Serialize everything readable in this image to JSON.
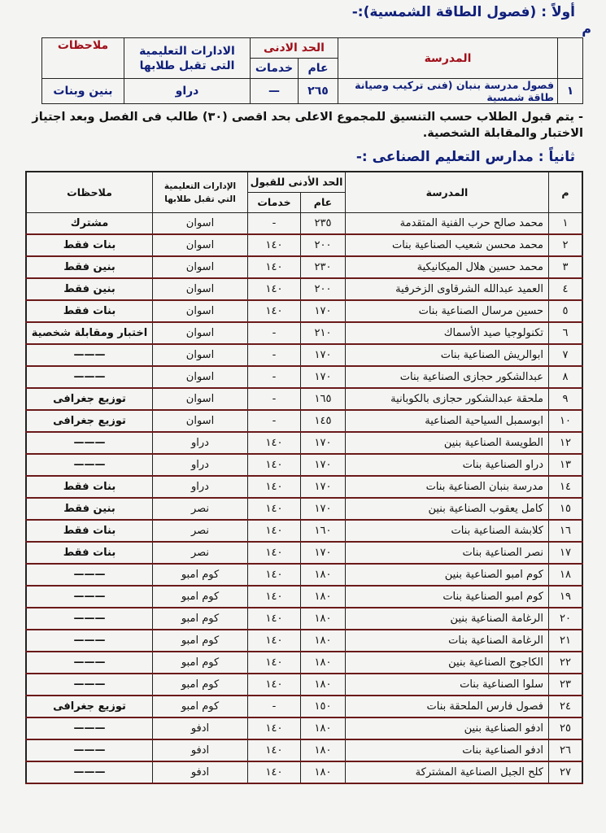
{
  "section1": {
    "title": "أولاً : (فصول الطاقة الشمسية):-",
    "num_header": "م",
    "headers": {
      "school": "المدرسة",
      "min": "الحد الادنى",
      "general": "عام",
      "services": "خدمات",
      "admin": "الادارات التعليمية التى تقبل طلابها",
      "notes": "ملاحظات"
    },
    "row": {
      "num": "١",
      "school": "فصول مدرسة بنبان (فنى تركيب وصيانة طاقة شمسية",
      "general": "٢٦٥",
      "services": "—",
      "admin": "دراو",
      "notes": "بنين وبنات"
    },
    "note": "- يتم قبول الطلاب حسب التنسيق للمجموع الاعلى بحد اقصى (٣٠) طالب فى الفصل وبعد اجتياز الاختبار والمقابلة الشخصية."
  },
  "section2": {
    "title": "ثانياً : مدارس التعليم الصناعى :-",
    "headers": {
      "num": "م",
      "school": "المدرسة",
      "min": "الحد الأدنى للقبول",
      "general": "عام",
      "services": "خدمات",
      "admin": "الإدارات التعليمية التي تقبل طلابها",
      "notes": "ملاحظات"
    },
    "rows": [
      [
        "١",
        "محمد صالح حرب الفنية المتقدمة",
        "٢٣٥",
        "-",
        "اسوان",
        "مشترك"
      ],
      [
        "٢",
        "محمد محسن شعيب الصناعية بنات",
        "٢٠٠",
        "١٤٠",
        "اسوان",
        "بنات فقط"
      ],
      [
        "٣",
        "محمد حسين هلال الميكانيكية",
        "٢٣٠",
        "١٤٠",
        "اسوان",
        "بنين فقط"
      ],
      [
        "٤",
        "العميد عبدالله الشرقاوى الزخرفية",
        "٢٠٠",
        "١٤٠",
        "اسوان",
        "بنين فقط"
      ],
      [
        "٥",
        "حسين مرسال الصناعية بنات",
        "١٧٠",
        "١٤٠",
        "اسوان",
        "بنات فقط"
      ],
      [
        "٦",
        "تكنولوجيا صيد الأسماك",
        "٢١٠",
        "-",
        "اسوان",
        "اختبار ومقابلة شخصية"
      ],
      [
        "٧",
        "ابوالريش الصناعية بنات",
        "١٧٠",
        "-",
        "اسوان",
        "———"
      ],
      [
        "٨",
        "عبدالشكور حجازى الصناعية بنات",
        "١٧٠",
        "-",
        "اسوان",
        "———"
      ],
      [
        "٩",
        "ملحقة عبدالشكور حجازى بالكوبانية",
        "١٦٥",
        "-",
        "اسوان",
        "توزيع جغرافى"
      ],
      [
        "١٠",
        "ابوسمبل السياحية الصناعية",
        "١٤٥",
        "-",
        "اسوان",
        "توزيع جغرافى"
      ],
      [
        "١٢",
        "الطويسة الصناعية بنين",
        "١٧٠",
        "١٤٠",
        "دراو",
        "———"
      ],
      [
        "١٣",
        "دراو الصناعية بنات",
        "١٧٠",
        "١٤٠",
        "دراو",
        "———"
      ],
      [
        "١٤",
        "مدرسة بنبان الصناعية بنات",
        "١٧٠",
        "١٤٠",
        "دراو",
        "بنات فقط"
      ],
      [
        "١٥",
        "كامل يعقوب الصناعية بنين",
        "١٧٠",
        "١٤٠",
        "نصر",
        "بنين فقط"
      ],
      [
        "١٦",
        "كلابشة الصناعية بنات",
        "١٦٠",
        "١٤٠",
        "نصر",
        "بنات فقط"
      ],
      [
        "١٧",
        "نصر الصناعية بنات",
        "١٧٠",
        "١٤٠",
        "نصر",
        "بنات فقط"
      ],
      [
        "١٨",
        "كوم امبو الصناعية بنين",
        "١٨٠",
        "١٤٠",
        "كوم امبو",
        "———"
      ],
      [
        "١٩",
        "كوم امبو الصناعية بنات",
        "١٨٠",
        "١٤٠",
        "كوم امبو",
        "———"
      ],
      [
        "٢٠",
        "الرغامة الصناعية بنين",
        "١٨٠",
        "١٤٠",
        "كوم امبو",
        "———"
      ],
      [
        "٢١",
        "الرغامة الصناعية بنات",
        "١٨٠",
        "١٤٠",
        "كوم امبو",
        "———"
      ],
      [
        "٢٢",
        "الكاجوج الصناعية بنين",
        "١٨٠",
        "١٤٠",
        "كوم امبو",
        "———"
      ],
      [
        "٢٣",
        "سلوا الصناعية بنات",
        "١٨٠",
        "١٤٠",
        "كوم امبو",
        "———"
      ],
      [
        "٢٤",
        "فصول فارس الملحقة بنات",
        "١٥٠",
        "-",
        "كوم امبو",
        "توزيع جغرافى"
      ],
      [
        "٢٥",
        "ادفو الصناعية بنين",
        "١٨٠",
        "١٤٠",
        "ادفو",
        "———"
      ],
      [
        "٢٦",
        "ادفو الصناعية بنات",
        "١٨٠",
        "١٤٠",
        "ادفو",
        "———"
      ],
      [
        "٢٧",
        "كلح الجبل الصناعية المشتركة",
        "١٨٠",
        "١٤٠",
        "ادفو",
        "———"
      ]
    ]
  }
}
